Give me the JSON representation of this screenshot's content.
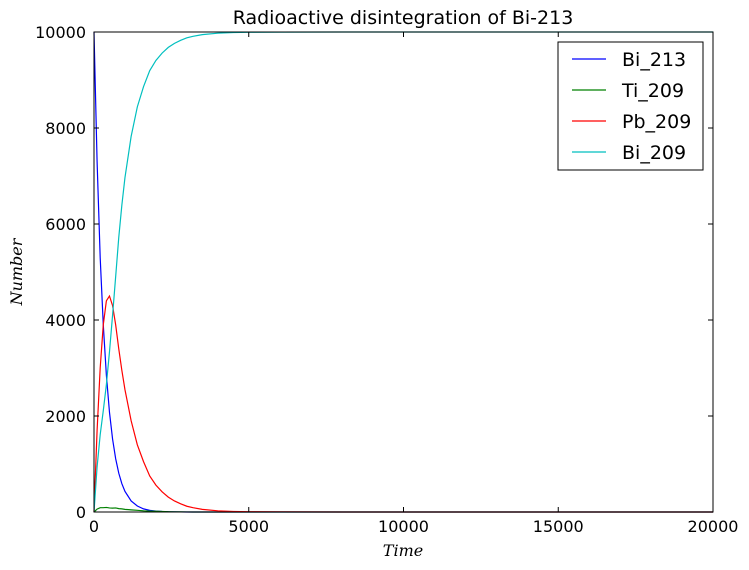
{
  "chart_data": {
    "type": "line",
    "title": "Radioactive disintegration of Bi-213",
    "xlabel": "Time",
    "ylabel": "Number",
    "xlim": [
      0,
      20000
    ],
    "ylim": [
      0,
      10000
    ],
    "xticks": [
      0,
      5000,
      10000,
      15000,
      20000
    ],
    "yticks": [
      0,
      2000,
      4000,
      6000,
      8000,
      10000
    ],
    "grid": false,
    "legend_position": "top-right",
    "x": [
      0,
      100,
      200,
      300,
      400,
      500,
      600,
      700,
      800,
      900,
      1000,
      1200,
      1400,
      1600,
      1800,
      2000,
      2200,
      2400,
      2600,
      2800,
      3000,
      3200,
      3500,
      4000,
      4500,
      5000,
      6000,
      8000,
      10000,
      12000,
      14000,
      16000,
      18000,
      20000
    ],
    "series": [
      {
        "name": "Bi_213",
        "color": "#0000ff",
        "values": [
          10000,
          7300,
          5300,
          3900,
          2850,
          2080,
          1520,
          1110,
          810,
          590,
          430,
          230,
          125,
          65,
          35,
          18,
          10,
          5,
          3,
          1,
          0,
          0,
          0,
          0,
          0,
          0,
          0,
          0,
          0,
          0,
          0,
          0,
          0,
          0
        ]
      },
      {
        "name": "Ti_209",
        "color": "#008000",
        "values": [
          0,
          60,
          90,
          90,
          95,
          85,
          80,
          85,
          70,
          65,
          55,
          45,
          35,
          25,
          20,
          15,
          10,
          6,
          4,
          2,
          1,
          0,
          0,
          0,
          0,
          0,
          0,
          0,
          0,
          0,
          0,
          0,
          0,
          0
        ]
      },
      {
        "name": "Pb_209",
        "color": "#ff0000",
        "values": [
          0,
          1700,
          3000,
          3900,
          4400,
          4500,
          4300,
          3900,
          3400,
          2950,
          2550,
          1900,
          1400,
          1050,
          750,
          560,
          420,
          310,
          230,
          170,
          120,
          90,
          55,
          25,
          12,
          6,
          2,
          0,
          0,
          0,
          0,
          0,
          0,
          0
        ]
      },
      {
        "name": "Bi_209",
        "color": "#00bfbf",
        "values": [
          0,
          940,
          1610,
          2110,
          2655,
          3335,
          4100,
          4905,
          5720,
          6395,
          6965,
          7825,
          8440,
          8860,
          9195,
          9407,
          9560,
          9679,
          9763,
          9827,
          9879,
          9910,
          9945,
          9975,
          9988,
          9994,
          9998,
          10000,
          10000,
          10000,
          10000,
          10000,
          10000,
          10000
        ]
      }
    ]
  }
}
